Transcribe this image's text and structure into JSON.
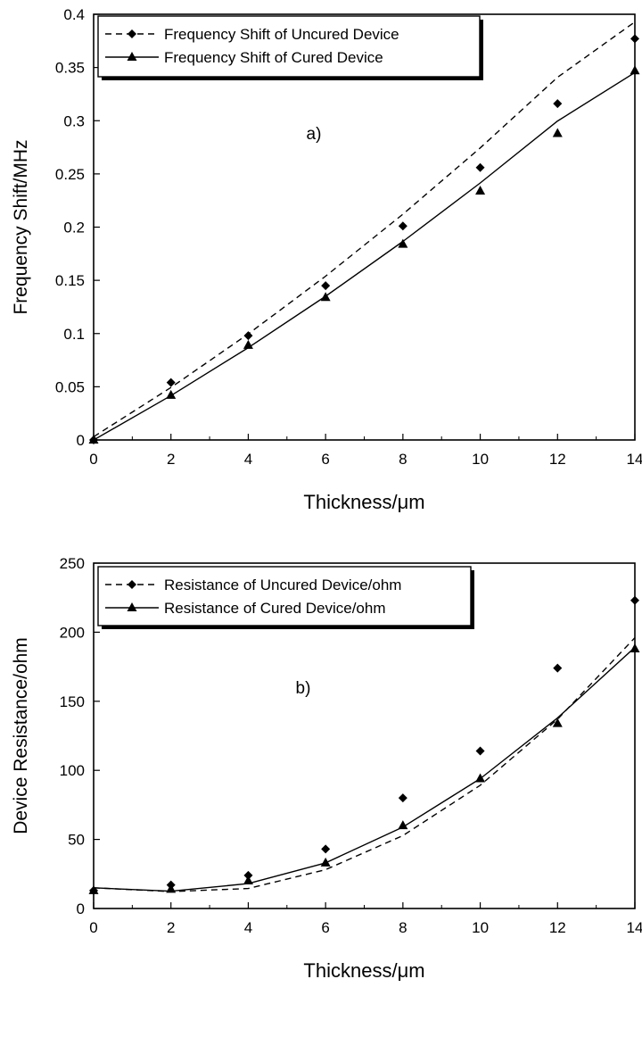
{
  "chart_data": [
    {
      "type": "scatter",
      "panel_label": "a)",
      "title": "",
      "xlabel": "Thickness/μm",
      "ylabel": "Frequency Shift/MHz",
      "xlim": [
        0,
        14
      ],
      "ylim": [
        0,
        0.4
      ],
      "xticks": [
        0,
        2,
        4,
        6,
        8,
        10,
        12,
        14
      ],
      "xtick_labels": [
        "0",
        "2",
        "4",
        "6",
        "8",
        "10",
        "12",
        "14"
      ],
      "yticks": [
        0,
        0.05,
        0.1,
        0.15,
        0.2,
        0.25,
        0.3,
        0.35,
        0.4
      ],
      "ytick_labels": [
        "0",
        "0.05",
        "0.1",
        "0.15",
        "0.2",
        "0.25",
        "0.3",
        "0.35",
        "0.4"
      ],
      "grid": false,
      "legend_position": "top-left",
      "x": [
        0,
        2,
        4,
        6,
        8,
        10,
        12,
        14
      ],
      "series": [
        {
          "name": "Frequency Shift of Uncured Device",
          "marker": "diamond",
          "line": "dashed",
          "values": [
            0,
            0.054,
            0.098,
            0.145,
            0.201,
            0.256,
            0.316,
            0.377
          ],
          "fit": [
            0.003,
            0.0493,
            0.0996,
            0.1539,
            0.2122,
            0.2745,
            0.3408,
            0.4111
          ],
          "fit_x": [
            0,
            2,
            4,
            6,
            8,
            10,
            12,
            14.7
          ]
        },
        {
          "name": "Frequency Shift of Cured Device",
          "marker": "triangle",
          "line": "solid",
          "values": [
            0,
            0.042,
            0.089,
            0.134,
            0.184,
            0.234,
            0.288,
            0.347
          ],
          "fit": [
            0.0,
            0.0417,
            0.0867,
            0.135,
            0.1866,
            0.2415,
            0.2997,
            0.3612
          ],
          "fit_x": [
            0,
            2,
            4,
            6,
            8,
            10,
            12,
            14.7
          ]
        }
      ]
    },
    {
      "type": "scatter",
      "panel_label": "b)",
      "title": "",
      "xlabel": "Thickness/μm",
      "ylabel": "Device Resistance/ohm",
      "xlim": [
        0,
        14
      ],
      "ylim": [
        0,
        250
      ],
      "xticks": [
        0,
        2,
        4,
        6,
        8,
        10,
        12,
        14
      ],
      "xtick_labels": [
        "0",
        "2",
        "4",
        "6",
        "8",
        "10",
        "12",
        "14"
      ],
      "yticks": [
        0,
        50,
        100,
        150,
        200,
        250
      ],
      "ytick_labels": [
        "0",
        "50",
        "100",
        "150",
        "200",
        "250"
      ],
      "grid": false,
      "legend_position": "top-left",
      "x": [
        0,
        2,
        4,
        6,
        8,
        10,
        12,
        14
      ],
      "series": [
        {
          "name": "Resistance of Uncured Device/ohm",
          "marker": "diamond",
          "line": "dashed",
          "values": [
            13,
            17,
            24,
            43,
            80,
            114,
            174,
            223
          ],
          "fit": [
            15.0,
            12.3,
            14.5,
            28.1,
            52.8,
            89.2,
            137.0,
            196.0,
            226.8
          ],
          "fit_x": [
            0,
            2,
            4,
            6,
            8,
            10,
            12,
            14,
            14.7
          ]
        },
        {
          "name": "Resistance of Cured Device/ohm",
          "marker": "triangle",
          "line": "solid",
          "values": [
            13,
            14,
            20,
            33,
            60,
            94,
            134,
            188
          ],
          "fit": [
            15.0,
            12.5,
            18.0,
            33.0,
            59.0,
            94.0,
            138.0,
            189.0
          ],
          "fit_x": [
            0,
            2,
            4,
            6,
            8,
            10,
            12,
            14
          ]
        }
      ]
    }
  ]
}
